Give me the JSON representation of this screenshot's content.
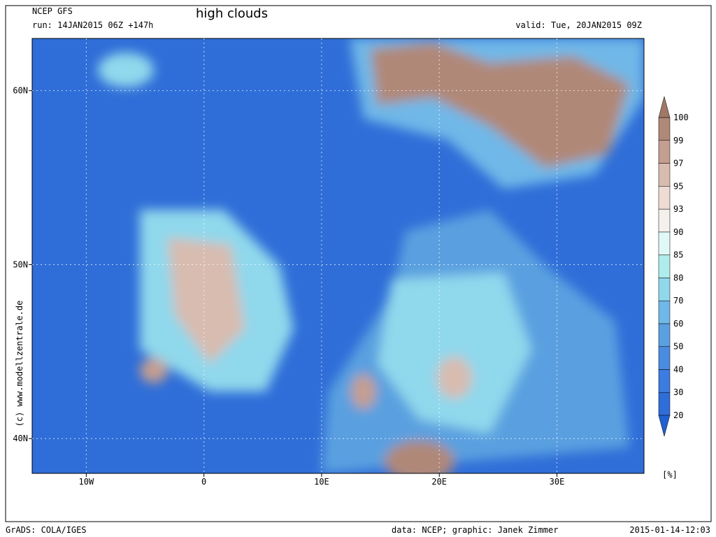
{
  "header": {
    "model": "NCEP GFS",
    "run": "run: 14JAN2015 06Z +147h",
    "title": "high clouds",
    "valid": "valid: Tue, 20JAN2015 09Z"
  },
  "map": {
    "xlim": [
      -14.6,
      37.4
    ],
    "ylim": [
      38,
      63
    ],
    "xticks": [
      {
        "value": -10,
        "label": "10W"
      },
      0,
      {
        "value": 10,
        "label": "10E"
      },
      {
        "value": 20,
        "label": "20E"
      },
      {
        "value": 30,
        "label": "30E"
      }
    ],
    "yticks": [
      {
        "value": 40,
        "label": "40N"
      },
      {
        "value": 50,
        "label": "50N"
      },
      {
        "value": 60,
        "label": "60N"
      }
    ],
    "grid": true
  },
  "colorbar": {
    "levels": [
      20,
      30,
      40,
      50,
      60,
      70,
      80,
      85,
      90,
      93,
      95,
      97,
      99,
      100
    ],
    "colors": [
      "#2f6ed8",
      "#3c7ce0",
      "#4a8ce0",
      "#5aa0e0",
      "#70b8e8",
      "#90d8ec",
      "#b0ecec",
      "#e0f8f8",
      "#f4f0ec",
      "#eedcd4",
      "#d8bcb0",
      "#c49e90",
      "#b08878"
    ],
    "under_color": "#2060d0",
    "over_color": "#a07868",
    "unit": "[%]"
  },
  "watermark": "(c)  www.modellzentrale.de",
  "footer": {
    "left": "GrADS: COLA/IGES",
    "center": "data: NCEP; graphic: Janek Zimmer",
    "right": "2015-01-14-12:03"
  }
}
